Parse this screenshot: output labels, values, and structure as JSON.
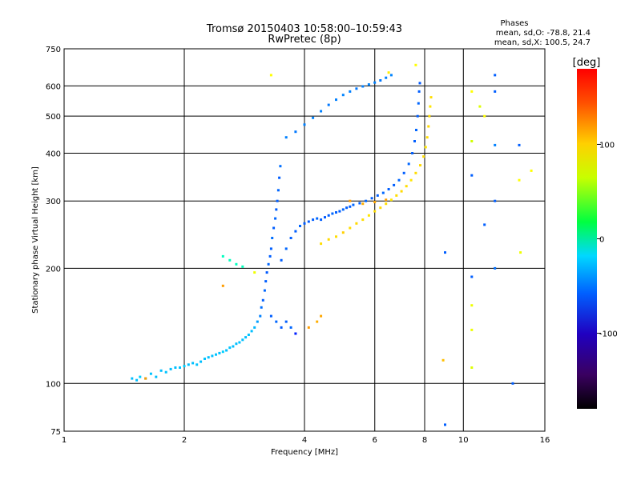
{
  "chart_data": {
    "type": "scatter",
    "title": "Tromsø 20150403 10:58:00–10:59:43",
    "subtitle": "RwPretec (8p)",
    "xlabel": "Frequency [MHz]",
    "ylabel": "Stationary phase Virtual Height [km]",
    "x_scale": "log",
    "y_scale": "log",
    "xlim": [
      1,
      16
    ],
    "ylim": [
      75,
      750
    ],
    "x_ticks": [
      1,
      2,
      4,
      6,
      8,
      10,
      16
    ],
    "x_tick_labels": [
      "1",
      "2",
      "4",
      "6",
      "8",
      "10",
      "16"
    ],
    "y_ticks": [
      75,
      100,
      200,
      300,
      400,
      500,
      600,
      750
    ],
    "y_tick_labels": [
      "75",
      "100",
      "200",
      "300",
      "400",
      "500",
      "600",
      "750"
    ],
    "grid": true,
    "stats": {
      "heading": "Phases",
      "line_o": "mean, sd,O: -78.8, 21.4",
      "line_x": "mean, sd,X: 100.5, 24.7"
    },
    "colorbar": {
      "label": "[deg]",
      "range": [
        -180,
        180
      ],
      "ticks": [
        100,
        0,
        -100
      ],
      "tick_labels": [
        "100",
        "0",
        "-100"
      ]
    },
    "series": [
      {
        "points": [
          [
            1.48,
            103,
            -80
          ],
          [
            1.52,
            102,
            -80
          ],
          [
            1.55,
            104,
            -75
          ],
          [
            1.6,
            103,
            -80
          ],
          [
            1.65,
            106,
            -78
          ],
          [
            1.7,
            104,
            -80
          ],
          [
            1.75,
            108,
            -80
          ],
          [
            1.8,
            107,
            -78
          ],
          [
            1.85,
            109,
            -80
          ],
          [
            1.9,
            110,
            -80
          ],
          [
            1.95,
            110,
            -78
          ],
          [
            2.0,
            111,
            -75
          ],
          [
            2.05,
            112,
            -80
          ],
          [
            2.1,
            113,
            -80
          ],
          [
            2.15,
            112,
            -78
          ],
          [
            2.2,
            114,
            -80
          ],
          [
            2.25,
            116,
            -78
          ],
          [
            2.3,
            117,
            -80
          ],
          [
            2.35,
            118,
            -80
          ],
          [
            2.4,
            119,
            -78
          ],
          [
            2.45,
            120,
            -80
          ],
          [
            2.5,
            121,
            -75
          ],
          [
            2.55,
            122,
            -80
          ],
          [
            2.6,
            124,
            -78
          ],
          [
            2.65,
            125,
            -80
          ],
          [
            2.7,
            127,
            -80
          ],
          [
            2.75,
            128,
            -78
          ],
          [
            2.8,
            130,
            -80
          ],
          [
            2.85,
            132,
            -80
          ],
          [
            2.9,
            134,
            -78
          ],
          [
            2.95,
            137,
            -80
          ],
          [
            3.0,
            140,
            -82
          ],
          [
            3.05,
            145,
            -90
          ],
          [
            3.1,
            150,
            -100
          ],
          [
            3.12,
            158,
            -105
          ],
          [
            3.15,
            165,
            -110
          ],
          [
            3.18,
            175,
            -108
          ],
          [
            3.2,
            185,
            -110
          ],
          [
            3.22,
            195,
            -112
          ],
          [
            3.25,
            205,
            -108
          ],
          [
            3.28,
            215,
            -110
          ],
          [
            3.3,
            225,
            -110
          ],
          [
            3.32,
            240,
            -105
          ],
          [
            3.35,
            255,
            -110
          ],
          [
            3.38,
            270,
            -108
          ],
          [
            3.4,
            285,
            -110
          ],
          [
            3.42,
            300,
            -110
          ],
          [
            3.44,
            320,
            -108
          ],
          [
            3.46,
            345,
            -110
          ],
          [
            3.48,
            370,
            -105
          ],
          [
            3.3,
            150,
            -110
          ],
          [
            3.4,
            145,
            -108
          ],
          [
            3.5,
            140,
            -112
          ],
          [
            3.6,
            145,
            -110
          ],
          [
            3.7,
            140,
            -108
          ],
          [
            3.8,
            135,
            -130
          ],
          [
            3.5,
            210,
            -110
          ],
          [
            3.6,
            225,
            -108
          ],
          [
            3.7,
            240,
            -110
          ],
          [
            3.8,
            250,
            -110
          ],
          [
            3.9,
            258,
            -108
          ],
          [
            4.0,
            262,
            -110
          ],
          [
            4.1,
            265,
            -112
          ],
          [
            4.2,
            268,
            -110
          ],
          [
            4.3,
            270,
            -108
          ],
          [
            4.4,
            268,
            -110
          ],
          [
            4.5,
            272,
            -112
          ],
          [
            4.6,
            275,
            -110
          ],
          [
            4.7,
            278,
            -108
          ],
          [
            4.8,
            280,
            -110
          ],
          [
            4.9,
            282,
            -110
          ],
          [
            5.0,
            285,
            -108
          ],
          [
            5.1,
            288,
            -110
          ],
          [
            5.2,
            290,
            -110
          ],
          [
            5.3,
            293,
            -108
          ],
          [
            5.5,
            296,
            -110
          ],
          [
            5.7,
            300,
            -108
          ],
          [
            5.9,
            305,
            -110
          ],
          [
            6.1,
            310,
            -110
          ],
          [
            6.3,
            315,
            -108
          ],
          [
            6.5,
            322,
            -110
          ],
          [
            6.7,
            330,
            -110
          ],
          [
            6.9,
            340,
            -108
          ],
          [
            7.1,
            355,
            -110
          ],
          [
            7.3,
            375,
            -108
          ],
          [
            7.45,
            400,
            -110
          ],
          [
            7.55,
            430,
            -110
          ],
          [
            7.62,
            460,
            -108
          ],
          [
            7.68,
            500,
            -110
          ],
          [
            7.72,
            540,
            -108
          ],
          [
            7.75,
            580,
            -110
          ],
          [
            7.78,
            610,
            -112
          ],
          [
            3.6,
            440,
            -100
          ],
          [
            3.8,
            455,
            -102
          ],
          [
            4.0,
            475,
            -100
          ],
          [
            4.2,
            495,
            -98
          ],
          [
            4.4,
            515,
            -100
          ],
          [
            4.6,
            535,
            -102
          ],
          [
            4.8,
            552,
            -100
          ],
          [
            5.0,
            568,
            -98
          ],
          [
            5.2,
            580,
            -100
          ],
          [
            5.4,
            590,
            -102
          ],
          [
            5.6,
            598,
            -100
          ],
          [
            5.8,
            605,
            -98
          ],
          [
            6.0,
            612,
            -100
          ],
          [
            6.2,
            620,
            -102
          ],
          [
            6.4,
            630,
            -100
          ],
          [
            6.6,
            640,
            -98
          ],
          [
            2.5,
            215,
            -40
          ],
          [
            2.6,
            210,
            -40
          ],
          [
            2.7,
            205,
            -40
          ],
          [
            2.8,
            202,
            -38
          ],
          [
            10.5,
            190,
            -110
          ],
          [
            12.0,
            200,
            -105
          ],
          [
            11.3,
            260,
            -110
          ],
          [
            12.0,
            300,
            -110
          ],
          [
            12.0,
            420,
            -100
          ],
          [
            13.8,
            420,
            -110
          ],
          [
            9.0,
            220,
            -110
          ],
          [
            9.0,
            78,
            -110
          ],
          [
            13.3,
            100,
            -110
          ],
          [
            12.0,
            640,
            -110
          ],
          [
            12.0,
            580,
            -110
          ],
          [
            10.5,
            350,
            -110
          ]
        ]
      },
      {
        "points": [
          [
            4.4,
            232,
            110
          ],
          [
            4.6,
            238,
            112
          ],
          [
            4.8,
            242,
            110
          ],
          [
            5.0,
            248,
            115
          ],
          [
            5.2,
            255,
            110
          ],
          [
            5.4,
            262,
            112
          ],
          [
            5.6,
            268,
            110
          ],
          [
            5.8,
            275,
            108
          ],
          [
            6.0,
            282,
            110
          ],
          [
            6.2,
            288,
            112
          ],
          [
            6.4,
            295,
            110
          ],
          [
            6.6,
            302,
            108
          ],
          [
            6.8,
            310,
            110
          ],
          [
            7.0,
            318,
            112
          ],
          [
            7.2,
            328,
            110
          ],
          [
            7.4,
            340,
            108
          ],
          [
            7.6,
            355,
            110
          ],
          [
            7.8,
            372,
            112
          ],
          [
            7.95,
            392,
            110
          ],
          [
            8.05,
            415,
            108
          ],
          [
            8.12,
            440,
            110
          ],
          [
            8.18,
            470,
            112
          ],
          [
            8.22,
            500,
            110
          ],
          [
            8.26,
            530,
            108
          ],
          [
            8.3,
            560,
            110
          ],
          [
            5.2,
            300,
            130
          ],
          [
            5.6,
            295,
            125
          ],
          [
            6.0,
            298,
            128
          ],
          [
            6.4,
            302,
            130
          ],
          [
            3.3,
            640,
            100
          ],
          [
            6.5,
            650,
            105
          ],
          [
            7.6,
            680,
            100
          ],
          [
            4.1,
            140,
            130
          ],
          [
            4.3,
            145,
            125
          ],
          [
            4.4,
            150,
            128
          ],
          [
            10.5,
            138,
            95
          ],
          [
            10.5,
            110,
            90
          ],
          [
            10.5,
            160,
            95
          ],
          [
            10.5,
            580,
            100
          ],
          [
            11.3,
            500,
            100
          ],
          [
            14.8,
            360,
            100
          ],
          [
            13.8,
            340,
            100
          ],
          [
            13.9,
            220,
            95
          ],
          [
            3.0,
            195,
            95
          ],
          [
            2.5,
            180,
            130
          ],
          [
            11.0,
            530,
            90
          ],
          [
            8.9,
            115,
            120
          ],
          [
            1.6,
            103,
            130
          ],
          [
            10.5,
            430,
            85
          ]
        ]
      }
    ]
  }
}
